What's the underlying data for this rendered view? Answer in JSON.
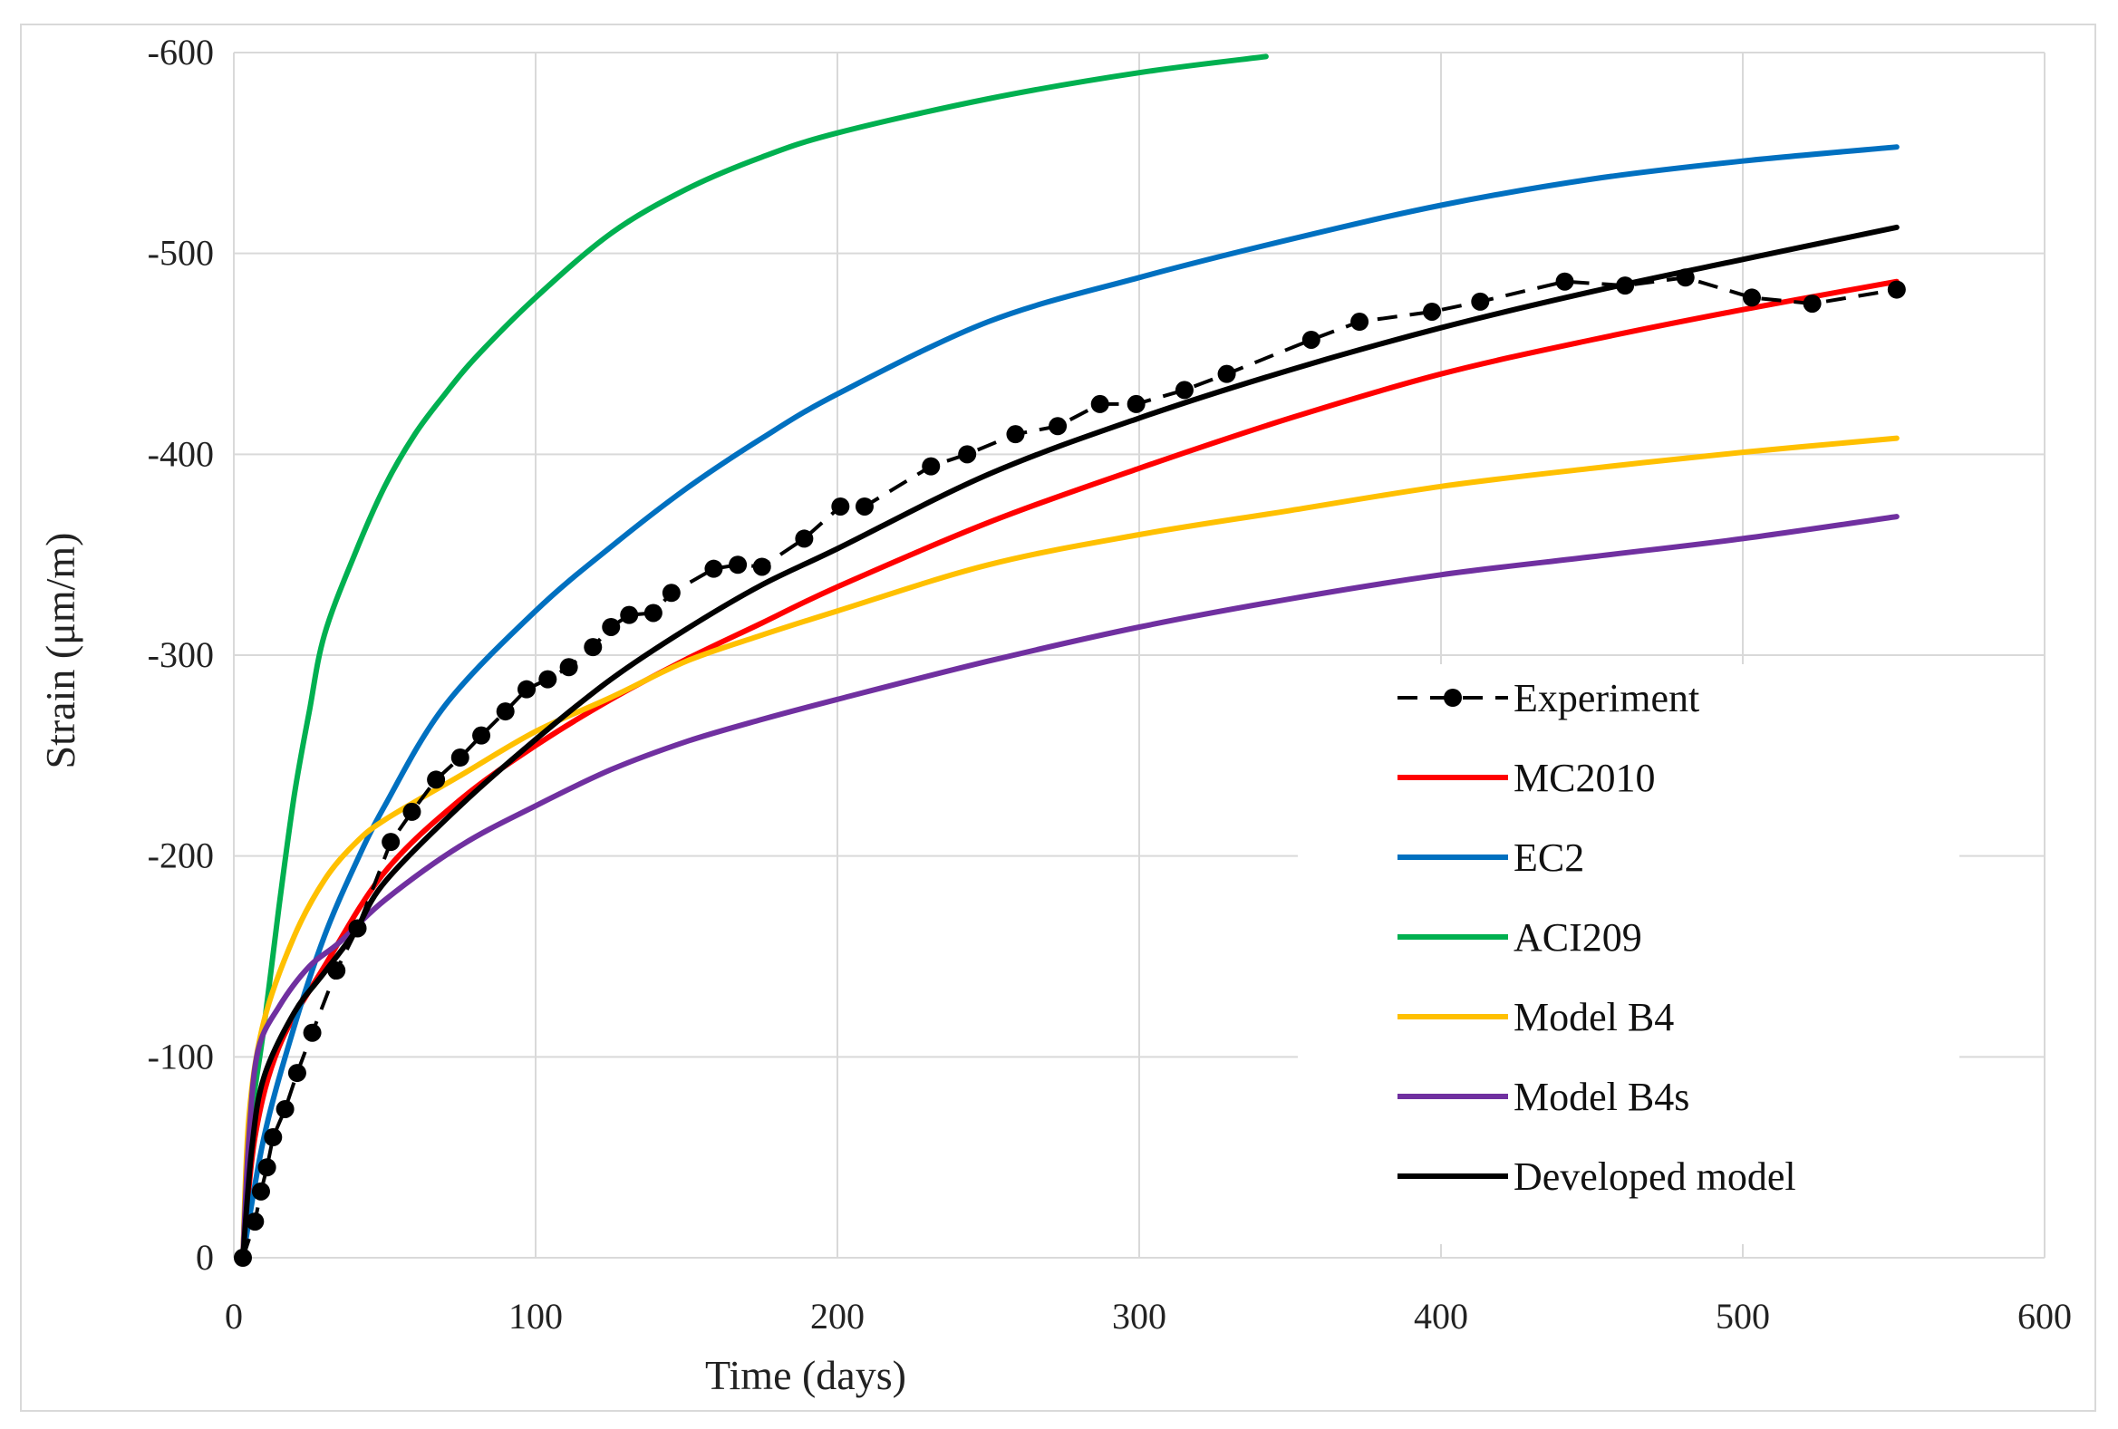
{
  "chart_data": {
    "type": "line",
    "title": "",
    "xlabel": "Time (days)",
    "ylabel": "Strain (μm/m)",
    "xlim": [
      0,
      600
    ],
    "ylim": [
      0,
      -600
    ],
    "x_ticks": [
      "0",
      "100",
      "200",
      "300",
      "400",
      "500",
      "600"
    ],
    "y_ticks": [
      "0",
      "-100",
      "-200",
      "-300",
      "-400",
      "-500",
      "-600"
    ],
    "grid": true,
    "legend_position": "bottom-right",
    "series": [
      {
        "name": "Experiment",
        "color": "#000000",
        "style": "dashed-markers",
        "points": [
          [
            3,
            0
          ],
          [
            7,
            -18
          ],
          [
            9,
            -33
          ],
          [
            11,
            -45
          ],
          [
            13,
            -60
          ],
          [
            17,
            -74
          ],
          [
            21,
            -92
          ],
          [
            26,
            -112
          ],
          [
            34,
            -143
          ],
          [
            41,
            -164
          ],
          [
            52,
            -207
          ],
          [
            59,
            -222
          ],
          [
            67,
            -238
          ],
          [
            75,
            -249
          ],
          [
            82,
            -260
          ],
          [
            90,
            -272
          ],
          [
            97,
            -283
          ],
          [
            104,
            -288
          ],
          [
            111,
            -294
          ],
          [
            119,
            -304
          ],
          [
            125,
            -314
          ],
          [
            131,
            -320
          ],
          [
            139,
            -321
          ],
          [
            145,
            -331
          ],
          [
            159,
            -343
          ],
          [
            167,
            -345
          ],
          [
            175,
            -344
          ],
          [
            189,
            -358
          ],
          [
            201,
            -374
          ],
          [
            209,
            -374
          ],
          [
            231,
            -394
          ],
          [
            243,
            -400
          ],
          [
            259,
            -410
          ],
          [
            273,
            -414
          ],
          [
            287,
            -425
          ],
          [
            299,
            -425
          ],
          [
            315,
            -432
          ],
          [
            329,
            -440
          ],
          [
            357,
            -457
          ],
          [
            373,
            -466
          ],
          [
            397,
            -471
          ],
          [
            413,
            -476
          ],
          [
            441,
            -486
          ],
          [
            461,
            -484
          ],
          [
            481,
            -488
          ],
          [
            503,
            -478
          ],
          [
            523,
            -475
          ],
          [
            551,
            -482
          ]
        ]
      },
      {
        "name": "MC2010",
        "color": "#ff0000",
        "points": [
          [
            3,
            0
          ],
          [
            7,
            -60
          ],
          [
            15,
            -105
          ],
          [
            30,
            -145
          ],
          [
            50,
            -192
          ],
          [
            75,
            -228
          ],
          [
            100,
            -255
          ],
          [
            125,
            -278
          ],
          [
            150,
            -298
          ],
          [
            175,
            -316
          ],
          [
            200,
            -334
          ],
          [
            250,
            -366
          ],
          [
            300,
            -393
          ],
          [
            350,
            -418
          ],
          [
            400,
            -440
          ],
          [
            450,
            -457
          ],
          [
            500,
            -472
          ],
          [
            551,
            -486
          ]
        ]
      },
      {
        "name": "EC2",
        "color": "#0070c0",
        "points": [
          [
            3,
            0
          ],
          [
            10,
            -60
          ],
          [
            20,
            -115
          ],
          [
            30,
            -160
          ],
          [
            40,
            -195
          ],
          [
            50,
            -225
          ],
          [
            70,
            -275
          ],
          [
            100,
            -322
          ],
          [
            125,
            -354
          ],
          [
            150,
            -383
          ],
          [
            175,
            -408
          ],
          [
            200,
            -430
          ],
          [
            250,
            -466
          ],
          [
            300,
            -488
          ],
          [
            350,
            -507
          ],
          [
            400,
            -524
          ],
          [
            450,
            -537
          ],
          [
            500,
            -546
          ],
          [
            551,
            -553
          ]
        ]
      },
      {
        "name": "ACI209",
        "color": "#00b050",
        "points": [
          [
            3,
            0
          ],
          [
            5,
            -60
          ],
          [
            10,
            -115
          ],
          [
            15,
            -175
          ],
          [
            20,
            -230
          ],
          [
            25,
            -272
          ],
          [
            30,
            -310
          ],
          [
            40,
            -350
          ],
          [
            50,
            -384
          ],
          [
            60,
            -410
          ],
          [
            70,
            -430
          ],
          [
            80,
            -448
          ],
          [
            100,
            -478
          ],
          [
            125,
            -510
          ],
          [
            150,
            -532
          ],
          [
            175,
            -548
          ],
          [
            200,
            -560
          ],
          [
            250,
            -577
          ],
          [
            300,
            -590
          ],
          [
            342,
            -598
          ]
        ]
      },
      {
        "name": "Model B4",
        "color": "#ffc000",
        "points": [
          [
            3,
            0
          ],
          [
            5,
            -70
          ],
          [
            10,
            -118
          ],
          [
            20,
            -160
          ],
          [
            30,
            -188
          ],
          [
            40,
            -206
          ],
          [
            50,
            -218
          ],
          [
            75,
            -240
          ],
          [
            100,
            -262
          ],
          [
            125,
            -279
          ],
          [
            150,
            -297
          ],
          [
            175,
            -310
          ],
          [
            200,
            -322
          ],
          [
            250,
            -345
          ],
          [
            300,
            -360
          ],
          [
            350,
            -372
          ],
          [
            400,
            -384
          ],
          [
            450,
            -393
          ],
          [
            500,
            -401
          ],
          [
            551,
            -408
          ]
        ]
      },
      {
        "name": "Model B4s",
        "color": "#7030a0",
        "points": [
          [
            3,
            0
          ],
          [
            5,
            -60
          ],
          [
            8,
            -103
          ],
          [
            15,
            -125
          ],
          [
            25,
            -145
          ],
          [
            35,
            -157
          ],
          [
            50,
            -178
          ],
          [
            75,
            -205
          ],
          [
            100,
            -225
          ],
          [
            125,
            -243
          ],
          [
            150,
            -257
          ],
          [
            175,
            -268
          ],
          [
            200,
            -278
          ],
          [
            250,
            -297
          ],
          [
            300,
            -314
          ],
          [
            350,
            -328
          ],
          [
            400,
            -340
          ],
          [
            450,
            -349
          ],
          [
            500,
            -358
          ],
          [
            551,
            -369
          ]
        ]
      },
      {
        "name": "Developed model",
        "color": "#000000",
        "points": [
          [
            3,
            0
          ],
          [
            6,
            -55
          ],
          [
            10,
            -90
          ],
          [
            20,
            -122
          ],
          [
            30,
            -142
          ],
          [
            40,
            -162
          ],
          [
            50,
            -187
          ],
          [
            75,
            -225
          ],
          [
            100,
            -258
          ],
          [
            125,
            -288
          ],
          [
            150,
            -313
          ],
          [
            175,
            -335
          ],
          [
            200,
            -353
          ],
          [
            250,
            -390
          ],
          [
            300,
            -418
          ],
          [
            350,
            -442
          ],
          [
            400,
            -463
          ],
          [
            450,
            -481
          ],
          [
            500,
            -497
          ],
          [
            551,
            -513
          ]
        ]
      }
    ]
  }
}
